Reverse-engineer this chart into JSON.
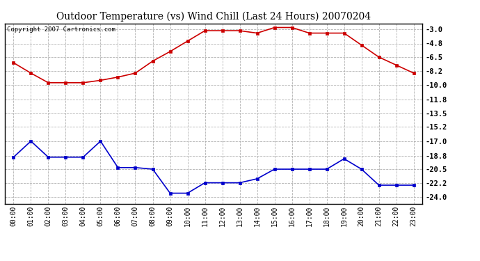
{
  "title": "Outdoor Temperature (vs) Wind Chill (Last 24 Hours) 20070204",
  "copyright": "Copyright 2007 Cartronics.com",
  "hours": [
    "00:00",
    "01:00",
    "02:00",
    "03:00",
    "04:00",
    "05:00",
    "06:00",
    "07:00",
    "08:00",
    "09:00",
    "10:00",
    "11:00",
    "12:00",
    "13:00",
    "14:00",
    "15:00",
    "16:00",
    "17:00",
    "18:00",
    "19:00",
    "20:00",
    "21:00",
    "22:00",
    "23:00"
  ],
  "temp": [
    -7.2,
    -8.5,
    -9.7,
    -9.7,
    -9.7,
    -9.4,
    -9.0,
    -8.5,
    -7.0,
    -5.8,
    -4.5,
    -3.2,
    -3.2,
    -3.2,
    -3.5,
    -2.8,
    -2.8,
    -3.5,
    -3.5,
    -3.5,
    -5.0,
    -6.5,
    -7.5,
    -8.5
  ],
  "windchill": [
    -19.0,
    -17.0,
    -19.0,
    -19.0,
    -19.0,
    -17.0,
    -20.3,
    -20.3,
    -20.5,
    -23.5,
    -23.5,
    -22.2,
    -22.2,
    -22.2,
    -21.7,
    -20.5,
    -20.5,
    -20.5,
    -20.5,
    -19.2,
    -20.5,
    -22.5,
    -22.5,
    -22.5
  ],
  "temp_color": "#cc0000",
  "windchill_color": "#0000cc",
  "bg_color": "#ffffff",
  "grid_color": "#aaaaaa",
  "ylim_min": -24.8,
  "ylim_max": -2.3,
  "yticks": [
    -3.0,
    -4.8,
    -6.5,
    -8.2,
    -10.0,
    -11.8,
    -13.5,
    -15.2,
    -17.0,
    -18.8,
    -20.5,
    -22.2,
    -24.0
  ]
}
